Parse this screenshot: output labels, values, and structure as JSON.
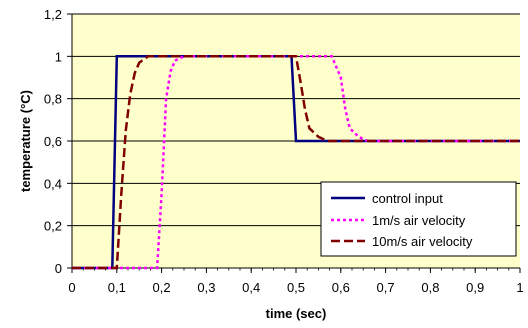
{
  "chart_data": {
    "type": "line",
    "xlabel": "time (sec)",
    "ylabel": "temperature (°C)",
    "xlim": [
      0,
      1
    ],
    "ylim": [
      0,
      1.2
    ],
    "x_ticks": [
      "0",
      "0,1",
      "0,2",
      "0,3",
      "0,4",
      "0,5",
      "0,6",
      "0,7",
      "0,8",
      "0,9",
      "1"
    ],
    "y_ticks": [
      "0",
      "0,2",
      "0,4",
      "0,6",
      "0,8",
      "1",
      "1,2"
    ],
    "grid": "horizontal",
    "background": "#ffffcc",
    "legend_position": "bottom-right",
    "series": [
      {
        "name": "control input",
        "color": "#000080",
        "style": "solid",
        "points": [
          [
            0,
            0
          ],
          [
            0.09,
            0
          ],
          [
            0.1,
            1
          ],
          [
            0.49,
            1
          ],
          [
            0.5,
            0.6
          ],
          [
            1,
            0.6
          ]
        ]
      },
      {
        "name": "1m/s air velocity",
        "color": "#ff00ff",
        "style": "dotted",
        "points": [
          [
            0,
            0
          ],
          [
            0.19,
            0
          ],
          [
            0.2,
            0.35
          ],
          [
            0.21,
            0.8
          ],
          [
            0.22,
            0.93
          ],
          [
            0.23,
            0.98
          ],
          [
            0.25,
            1
          ],
          [
            0.58,
            1
          ],
          [
            0.6,
            0.9
          ],
          [
            0.61,
            0.75
          ],
          [
            0.62,
            0.66
          ],
          [
            0.64,
            0.62
          ],
          [
            0.66,
            0.6
          ],
          [
            1,
            0.6
          ]
        ]
      },
      {
        "name": "10m/s air velocity",
        "color": "#800000",
        "style": "dashed",
        "points": [
          [
            0,
            0
          ],
          [
            0.1,
            0
          ],
          [
            0.11,
            0.35
          ],
          [
            0.12,
            0.65
          ],
          [
            0.13,
            0.82
          ],
          [
            0.14,
            0.92
          ],
          [
            0.15,
            0.97
          ],
          [
            0.17,
            1
          ],
          [
            0.5,
            1
          ],
          [
            0.51,
            0.88
          ],
          [
            0.52,
            0.75
          ],
          [
            0.53,
            0.66
          ],
          [
            0.55,
            0.62
          ],
          [
            0.57,
            0.6
          ],
          [
            1,
            0.6
          ]
        ]
      }
    ]
  }
}
